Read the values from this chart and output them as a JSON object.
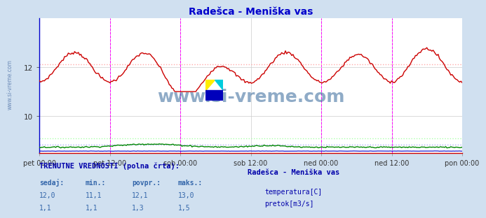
{
  "title": "Radešca - Meniška vas",
  "title_color": "#0000cc",
  "bg_color": "#d0e0f0",
  "plot_bg_color": "#ffffff",
  "grid_color": "#cccccc",
  "x_ticks_labels": [
    "pet 00:00",
    "pet 12:00",
    "sob 00:00",
    "sob 12:00",
    "ned 00:00",
    "ned 12:00",
    "pon 00:00"
  ],
  "x_ticks_pos": [
    0,
    24,
    48,
    72,
    96,
    120,
    144
  ],
  "ylim": [
    8.5,
    14.0
  ],
  "y_ticks": [
    10,
    12
  ],
  "vline_positions": [
    24,
    48,
    96,
    120
  ],
  "vline_color": "#ff00ff",
  "hline_temp_val": 12.1,
  "hline_flow_val": 9.1,
  "hline_height_val": 8.85,
  "hline_color_temp": "#ffaaaa",
  "hline_color_flow": "#aaffaa",
  "hline_color_height": "#aaaaff",
  "temp_color": "#cc0000",
  "flow_color": "#008800",
  "height_color": "#0000cc",
  "left_spine_color": "#0000cc",
  "bottom_spine_color": "#cc0000",
  "watermark_text": "www.si-vreme.com",
  "watermark_color": "#336699",
  "bottom_bg_color": "#d0e0f0",
  "bottom_text_line1": "TRENUTNE VREDNOSTI (polna črta):",
  "bottom_headers": [
    "sedaj:",
    "min.:",
    "povpr.:",
    "maks.:"
  ],
  "bottom_row1": [
    "12,0",
    "11,1",
    "12,1",
    "13,0"
  ],
  "bottom_row2": [
    "1,1",
    "1,1",
    "1,3",
    "1,5"
  ],
  "legend_title": "Radešca - Meniška vas",
  "legend_items": [
    "temperatura[C]",
    "pretok[m3/s]"
  ],
  "legend_colors": [
    "#cc0000",
    "#008800"
  ],
  "n_points": 336,
  "x_total": 144
}
